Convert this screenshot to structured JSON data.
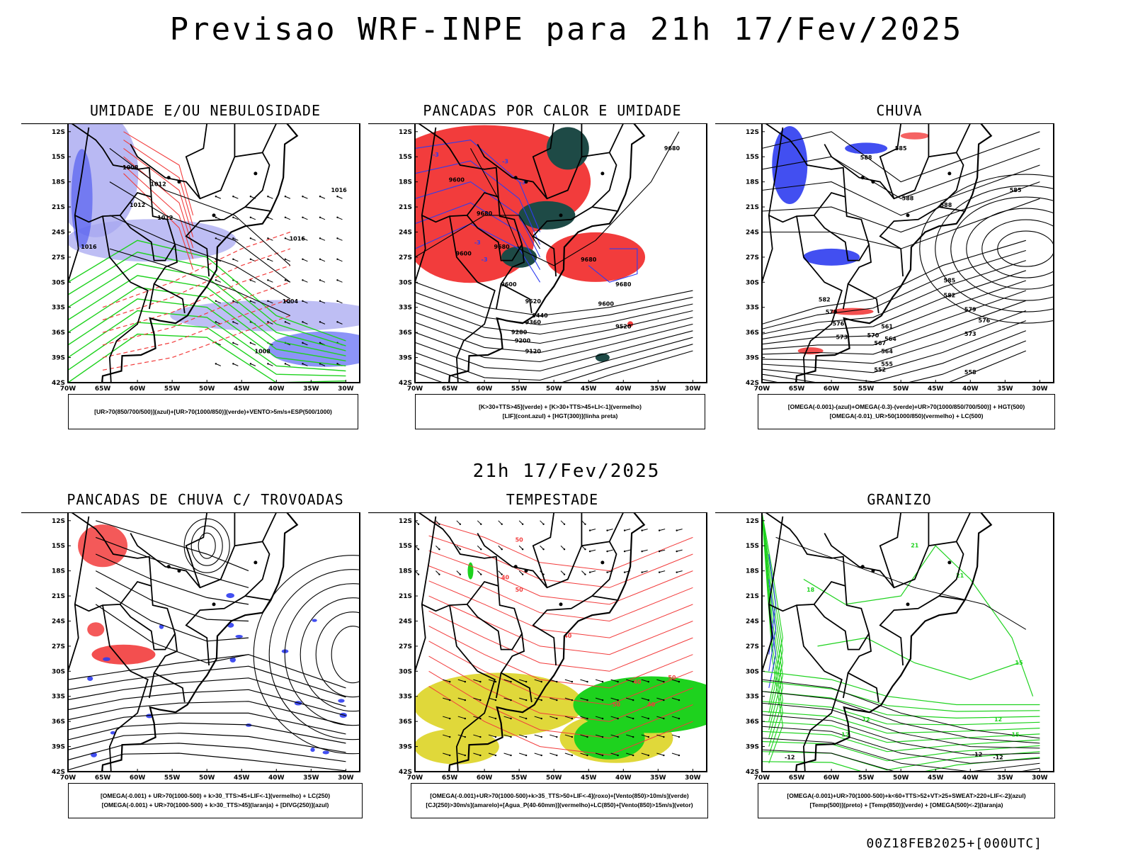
{
  "title": "Previsao WRF-INPE  para 21h 17/Fev/2025",
  "subtitle": "21h 17/Fev/2025",
  "footer": "00Z18FEB2025+[000UTC]",
  "axes": {
    "lat_labels": [
      "12S",
      "15S",
      "18S",
      "21S",
      "24S",
      "27S",
      "30S",
      "33S",
      "36S",
      "39S",
      "42S"
    ],
    "lon_labels": [
      "70W",
      "65W",
      "60W",
      "55W",
      "50W",
      "45W",
      "40W",
      "35W",
      "30W"
    ]
  },
  "colors": {
    "blue": "#2e3cf0",
    "light_blue": "#a8a8f0",
    "green": "#1ed21e",
    "red": "#f23c3c",
    "dark_teal": "#1e4a46",
    "yellow": "#e0d83a"
  },
  "panels": [
    {
      "title": "UMIDADE E/OU NEBULOSIDADE",
      "legend": [
        "[UR>70(850/700/500)](azul)+[UR>70(1000/850)](verde)+VENTO>5m/s+ESP(500/1000)"
      ],
      "labels": [
        "1008",
        "1012",
        "1012",
        "1012",
        "1016",
        "1016",
        "1016",
        "1004",
        "1008"
      ]
    },
    {
      "title": "PANCADAS POR CALOR E UMIDADE",
      "legend": [
        "[K>30+TTS>45](verde) + [K>30+TTS>45+LI<-1](vermelho)",
        "[LIF](cont.azul) + [HGT(300)](linha preta)"
      ],
      "labels": [
        "9680",
        "9600",
        "9680",
        "9680",
        "9680",
        "9600",
        "9680",
        "9600",
        "9520",
        "9440",
        "9360",
        "9280",
        "9200",
        "9120",
        "9600",
        "9520",
        "-3",
        "-3",
        "-3",
        "-3",
        "-3"
      ]
    },
    {
      "title": "CHUVA",
      "legend": [
        "[OMEGA(-0.001)-(azul)+OMEGA(-0.3)-(verde)+UR>70(1000/850/700/500)] + HGT(500)",
        "[OMEGA(-0.01)_UR>50(1000/850)(vermelho) + LC(500)"
      ],
      "labels": [
        "588",
        "585",
        "585",
        "588",
        "582",
        "579",
        "576",
        "573",
        "570",
        "567",
        "564",
        "564",
        "561",
        "555",
        "552",
        "585",
        "582",
        "579",
        "576",
        "573",
        "558",
        "588"
      ]
    },
    {
      "title": "PANCADAS DE CHUVA C/ TROVOADAS",
      "legend": [
        "[OMEGA(-0.001) + UR>70(1000-500) + k>30_TTS>45+LIF<-1](vermelho) + LC(250)",
        "[OMEGA(-0.001) + UR>70(1000-500) + k>30_TTS>45](laranja) + [DIVG(250)](azul)"
      ],
      "labels": []
    },
    {
      "title": "TEMPESTADE",
      "legend": [
        "[OMEGA(-0.001)+UR>70(1000-500)+k>35_TTS>50+LIF<-4](roxo)+[Vento(850)>10m/s](verde)",
        "[CJ(250)>30m/s](amarelo)+[Agua_P(40-60mm)](vermelho)+LC(850)+[Vento(850)>15m/s](vetor)"
      ],
      "labels": [
        "50",
        "40",
        "50",
        "40",
        "50",
        "40",
        "50",
        "40"
      ]
    },
    {
      "title": "GRANIZO",
      "legend": [
        "[OMEGA(-0.001)+UR>70(1000-500)+k<60+TTS>52+VT>25+SWEAT>220+LIF<-2](azul)",
        "[Temp(500)](preto) + [Temp(850)](verde) + [OMEGA(500)<-2](laranja)"
      ],
      "labels": [
        "21",
        "21",
        "18",
        "15",
        "12",
        "15",
        "12",
        "-12",
        "-12",
        "-12",
        "12"
      ]
    }
  ]
}
